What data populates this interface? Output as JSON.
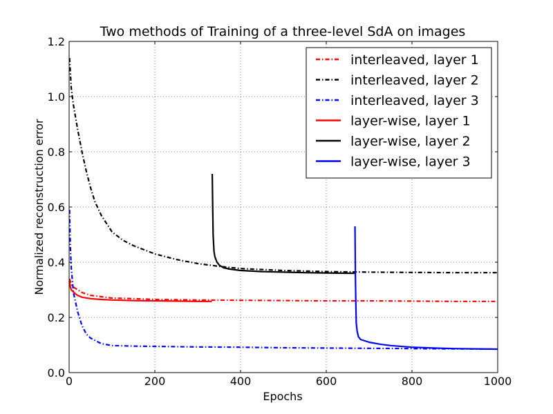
{
  "chart_data": {
    "type": "line",
    "title": "Two methods of Training of a  three-level SdA on images",
    "xlabel": "Epochs",
    "ylabel": "Normalized reconstruction error",
    "xlim": [
      0,
      1000
    ],
    "ylim": [
      0.0,
      1.2
    ],
    "xticks": [
      "0",
      "200",
      "400",
      "600",
      "800",
      "1000"
    ],
    "yticks": [
      "0.0",
      "0.2",
      "0.4",
      "0.6",
      "0.8",
      "1.0",
      "1.2"
    ],
    "grid": true,
    "legend_position": "top-right",
    "series": [
      {
        "name": "interleaved, layer 1",
        "color": "#ff0000",
        "style": "dashdot",
        "x": [
          1,
          5,
          10,
          20,
          30,
          50,
          75,
          100,
          150,
          200,
          300,
          400,
          500,
          600,
          700,
          800,
          900,
          1000
        ],
        "y": [
          0.34,
          0.32,
          0.31,
          0.3,
          0.29,
          0.28,
          0.275,
          0.27,
          0.268,
          0.265,
          0.263,
          0.262,
          0.261,
          0.26,
          0.26,
          0.259,
          0.258,
          0.258
        ]
      },
      {
        "name": "interleaved, layer 2",
        "color": "#000000",
        "style": "dashdot",
        "x": [
          1,
          5,
          10,
          20,
          30,
          40,
          50,
          60,
          75,
          100,
          125,
          150,
          200,
          250,
          300,
          350,
          400,
          500,
          600,
          700,
          800,
          900,
          1000
        ],
        "y": [
          1.14,
          1.03,
          0.97,
          0.88,
          0.8,
          0.73,
          0.67,
          0.62,
          0.57,
          0.51,
          0.48,
          0.46,
          0.43,
          0.41,
          0.395,
          0.385,
          0.377,
          0.37,
          0.366,
          0.364,
          0.363,
          0.362,
          0.362
        ]
      },
      {
        "name": "interleaved, layer 3",
        "color": "#0000ff",
        "style": "dashdot",
        "x": [
          1,
          3,
          5,
          10,
          20,
          30,
          40,
          50,
          75,
          100,
          150,
          200,
          300,
          400,
          500,
          600,
          700,
          800,
          900,
          1000
        ],
        "y": [
          0.59,
          0.45,
          0.38,
          0.29,
          0.22,
          0.17,
          0.14,
          0.125,
          0.105,
          0.098,
          0.096,
          0.095,
          0.093,
          0.092,
          0.09,
          0.089,
          0.088,
          0.087,
          0.086,
          0.085
        ]
      },
      {
        "name": "layer-wise, layer 1",
        "color": "#ff0000",
        "style": "solid",
        "x": [
          1,
          3,
          5,
          10,
          15,
          20,
          30,
          50,
          75,
          100,
          150,
          200,
          250,
          300,
          333
        ],
        "y": [
          0.33,
          0.31,
          0.3,
          0.292,
          0.285,
          0.28,
          0.273,
          0.268,
          0.265,
          0.263,
          0.261,
          0.26,
          0.259,
          0.258,
          0.258
        ]
      },
      {
        "name": "layer-wise, layer 2",
        "color": "#000000",
        "style": "solid",
        "x": [
          334,
          335,
          336,
          338,
          340,
          345,
          350,
          360,
          375,
          400,
          450,
          500,
          550,
          600,
          650,
          667
        ],
        "y": [
          0.72,
          0.6,
          0.5,
          0.44,
          0.42,
          0.4,
          0.39,
          0.38,
          0.375,
          0.37,
          0.366,
          0.364,
          0.362,
          0.361,
          0.36,
          0.36
        ]
      },
      {
        "name": "layer-wise, layer 3",
        "color": "#0000ff",
        "style": "solid",
        "x": [
          667,
          668,
          669,
          670,
          672,
          675,
          680,
          690,
          700,
          725,
          750,
          800,
          850,
          900,
          950,
          1000
        ],
        "y": [
          0.53,
          0.35,
          0.25,
          0.18,
          0.15,
          0.13,
          0.12,
          0.115,
          0.11,
          0.103,
          0.098,
          0.092,
          0.089,
          0.087,
          0.086,
          0.085
        ]
      }
    ]
  }
}
